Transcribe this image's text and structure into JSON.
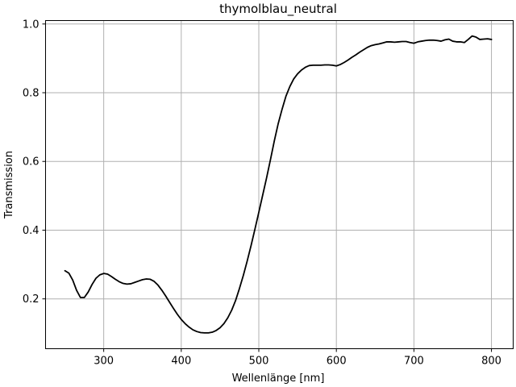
{
  "chart_data": {
    "type": "line",
    "title": "thymolblau_neutral",
    "xlabel": "Wellenlänge [nm]",
    "ylabel": "Transmission",
    "xlim": [
      225,
      828
    ],
    "ylim": [
      0.055,
      1.01
    ],
    "xticks": [
      300,
      400,
      500,
      600,
      700,
      800
    ],
    "yticks": [
      0.2,
      0.4,
      0.6,
      0.8,
      1.0
    ],
    "xtick_labels": [
      "300",
      "400",
      "500",
      "600",
      "700",
      "800"
    ],
    "ytick_labels": [
      "0.2",
      "0.4",
      "0.6",
      "0.8",
      "1.0"
    ],
    "grid": true,
    "line_color": "#000000",
    "series": [
      {
        "points": [
          [
            250,
            0.282
          ],
          [
            255,
            0.275
          ],
          [
            260,
            0.255
          ],
          [
            265,
            0.225
          ],
          [
            270,
            0.204
          ],
          [
            275,
            0.204
          ],
          [
            280,
            0.22
          ],
          [
            285,
            0.242
          ],
          [
            290,
            0.26
          ],
          [
            295,
            0.27
          ],
          [
            300,
            0.274
          ],
          [
            305,
            0.272
          ],
          [
            310,
            0.265
          ],
          [
            315,
            0.257
          ],
          [
            320,
            0.25
          ],
          [
            325,
            0.245
          ],
          [
            330,
            0.243
          ],
          [
            335,
            0.244
          ],
          [
            340,
            0.248
          ],
          [
            345,
            0.252
          ],
          [
            350,
            0.256
          ],
          [
            355,
            0.258
          ],
          [
            360,
            0.257
          ],
          [
            365,
            0.251
          ],
          [
            370,
            0.24
          ],
          [
            375,
            0.225
          ],
          [
            380,
            0.208
          ],
          [
            385,
            0.19
          ],
          [
            390,
            0.172
          ],
          [
            395,
            0.155
          ],
          [
            400,
            0.14
          ],
          [
            405,
            0.128
          ],
          [
            410,
            0.118
          ],
          [
            415,
            0.11
          ],
          [
            420,
            0.105
          ],
          [
            425,
            0.102
          ],
          [
            430,
            0.101
          ],
          [
            435,
            0.101
          ],
          [
            440,
            0.103
          ],
          [
            445,
            0.108
          ],
          [
            450,
            0.116
          ],
          [
            455,
            0.128
          ],
          [
            460,
            0.145
          ],
          [
            465,
            0.167
          ],
          [
            470,
            0.195
          ],
          [
            475,
            0.23
          ],
          [
            480,
            0.268
          ],
          [
            485,
            0.31
          ],
          [
            490,
            0.355
          ],
          [
            495,
            0.403
          ],
          [
            500,
            0.452
          ],
          [
            505,
            0.502
          ],
          [
            510,
            0.552
          ],
          [
            515,
            0.605
          ],
          [
            520,
            0.66
          ],
          [
            525,
            0.71
          ],
          [
            530,
            0.752
          ],
          [
            535,
            0.79
          ],
          [
            540,
            0.818
          ],
          [
            545,
            0.84
          ],
          [
            550,
            0.855
          ],
          [
            555,
            0.866
          ],
          [
            560,
            0.874
          ],
          [
            565,
            0.879
          ],
          [
            570,
            0.88
          ],
          [
            575,
            0.88
          ],
          [
            580,
            0.88
          ],
          [
            585,
            0.881
          ],
          [
            590,
            0.881
          ],
          [
            595,
            0.88
          ],
          [
            600,
            0.878
          ],
          [
            605,
            0.882
          ],
          [
            610,
            0.888
          ],
          [
            615,
            0.895
          ],
          [
            620,
            0.903
          ],
          [
            625,
            0.91
          ],
          [
            630,
            0.918
          ],
          [
            635,
            0.925
          ],
          [
            640,
            0.932
          ],
          [
            645,
            0.937
          ],
          [
            650,
            0.94
          ],
          [
            655,
            0.942
          ],
          [
            660,
            0.945
          ],
          [
            665,
            0.948
          ],
          [
            670,
            0.948
          ],
          [
            675,
            0.947
          ],
          [
            680,
            0.948
          ],
          [
            685,
            0.949
          ],
          [
            690,
            0.949
          ],
          [
            695,
            0.946
          ],
          [
            700,
            0.944
          ],
          [
            705,
            0.948
          ],
          [
            710,
            0.95
          ],
          [
            715,
            0.952
          ],
          [
            720,
            0.953
          ],
          [
            725,
            0.953
          ],
          [
            730,
            0.952
          ],
          [
            735,
            0.95
          ],
          [
            740,
            0.954
          ],
          [
            745,
            0.956
          ],
          [
            750,
            0.95
          ],
          [
            755,
            0.948
          ],
          [
            760,
            0.948
          ],
          [
            765,
            0.946
          ],
          [
            770,
            0.955
          ],
          [
            775,
            0.965
          ],
          [
            780,
            0.962
          ],
          [
            785,
            0.955
          ],
          [
            790,
            0.956
          ],
          [
            795,
            0.957
          ],
          [
            800,
            0.955
          ]
        ]
      }
    ]
  }
}
